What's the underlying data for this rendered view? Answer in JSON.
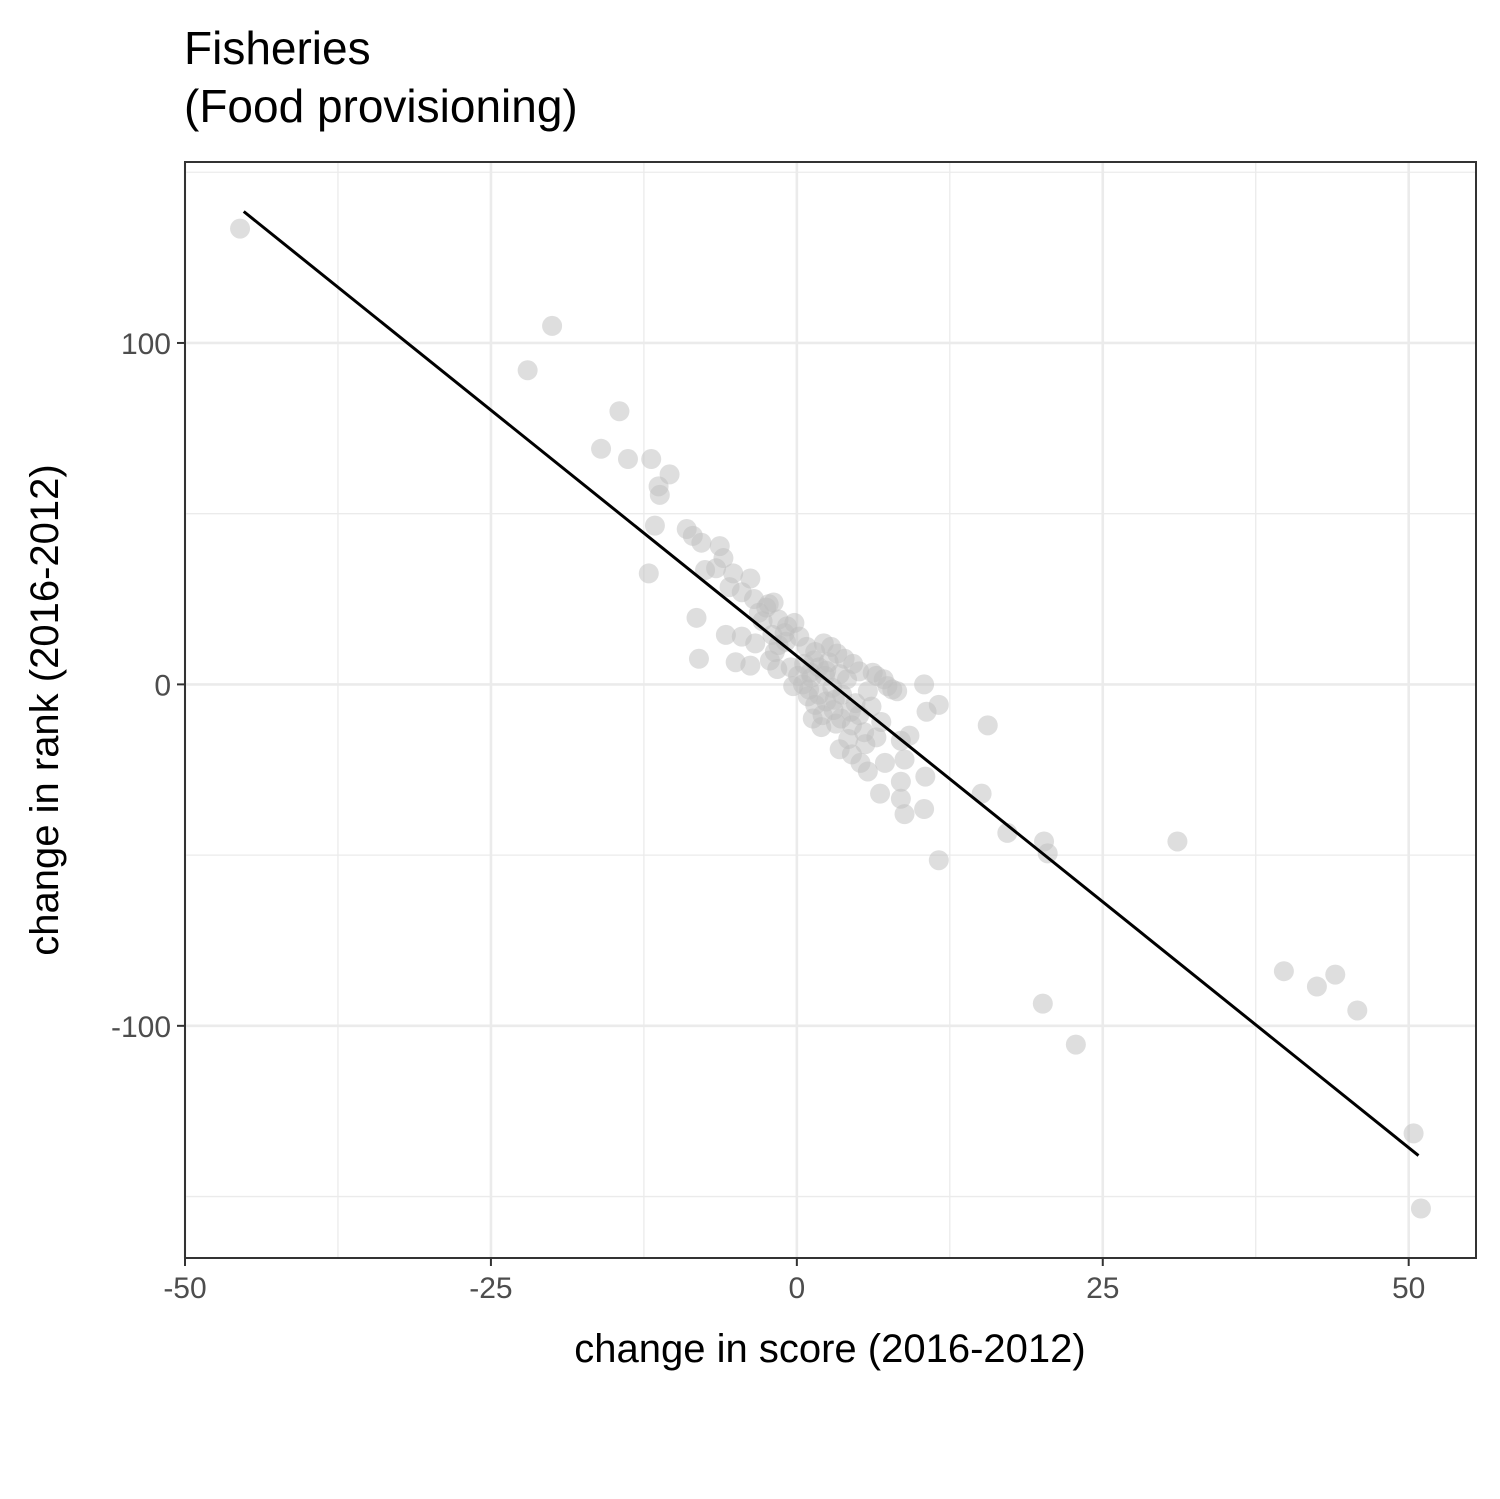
{
  "chart_data": {
    "type": "scatter",
    "title_lines": [
      "Fisheries",
      "(Food provisioning)"
    ],
    "xlabel": "change in score (2016-2012)",
    "ylabel": "change in rank (2016-2012)",
    "xlim": [
      -50,
      55.5
    ],
    "ylim": [
      -168,
      153
    ],
    "x_ticks": [
      {
        "value": -50,
        "label": "-50"
      },
      {
        "value": -25,
        "label": "-25"
      },
      {
        "value": 0,
        "label": "0"
      },
      {
        "value": 25,
        "label": "25"
      },
      {
        "value": 50,
        "label": "50"
      }
    ],
    "y_ticks": [
      {
        "value": -100,
        "label": "-100"
      },
      {
        "value": 0,
        "label": "0"
      },
      {
        "value": 100,
        "label": "100"
      }
    ],
    "x_minor_breaks": [
      -37.5,
      -12.5,
      12.5,
      37.5
    ],
    "y_minor_breaks": [
      -150,
      -50,
      50,
      150
    ],
    "grid": true,
    "point_color": "#bebebe",
    "point_opacity": 0.5,
    "line_color": "#000000",
    "trend_line": [
      [
        -45.2,
        138.5
      ],
      [
        50.8,
        -138
      ]
    ],
    "points": [
      [
        -45.5,
        133.5
      ],
      [
        -22,
        92
      ],
      [
        -20,
        105
      ],
      [
        -14.5,
        80
      ],
      [
        -16,
        69
      ],
      [
        -13.8,
        66
      ],
      [
        -11.9,
        66
      ],
      [
        -11.3,
        58
      ],
      [
        -11.2,
        55.5
      ],
      [
        -10.4,
        61.5
      ],
      [
        -11.6,
        46.5
      ],
      [
        -12.1,
        32.5
      ],
      [
        -9,
        45.5
      ],
      [
        -8.5,
        43.5
      ],
      [
        -7.8,
        41.5
      ],
      [
        -6.3,
        40.5
      ],
      [
        -6,
        37
      ],
      [
        -6.6,
        34
      ],
      [
        -7.5,
        33.5
      ],
      [
        -5.2,
        32.5
      ],
      [
        -3.8,
        31
      ],
      [
        -5.5,
        28.5
      ],
      [
        -4.5,
        27
      ],
      [
        -3.5,
        25
      ],
      [
        -2.5,
        22.5
      ],
      [
        -2.3,
        23.5
      ],
      [
        -1.9,
        24
      ],
      [
        -3.1,
        21
      ],
      [
        -2.8,
        18.5
      ],
      [
        -1.5,
        19
      ],
      [
        -0.8,
        17
      ],
      [
        -0.2,
        18
      ],
      [
        -8.2,
        19.5
      ],
      [
        -1,
        15
      ],
      [
        0.2,
        14
      ],
      [
        -2,
        14.5
      ],
      [
        -4.5,
        14
      ],
      [
        -3.4,
        12
      ],
      [
        -5.8,
        14.5
      ],
      [
        -1.5,
        11.5
      ],
      [
        -8,
        7.5
      ],
      [
        -5,
        6.5
      ],
      [
        -3.8,
        5.5
      ],
      [
        -2.2,
        7
      ],
      [
        -1.6,
        4.5
      ],
      [
        0.8,
        11
      ],
      [
        1.5,
        9.5
      ],
      [
        2.2,
        12
      ],
      [
        2.8,
        11
      ],
      [
        3.3,
        9
      ],
      [
        3.9,
        7.5
      ],
      [
        4.6,
        6
      ],
      [
        5.1,
        3.8
      ],
      [
        6.2,
        3.4
      ],
      [
        6.5,
        2.5
      ],
      [
        7.1,
        1.5
      ],
      [
        7.4,
        -0.5
      ],
      [
        7.8,
        -1.5
      ],
      [
        8.2,
        -2
      ],
      [
        2.4,
        4
      ],
      [
        1.2,
        2
      ],
      [
        0.5,
        0
      ],
      [
        1,
        -1.5
      ],
      [
        1.8,
        -3
      ],
      [
        2.4,
        -5
      ],
      [
        3,
        -7.5
      ],
      [
        3.6,
        -10
      ],
      [
        4.5,
        -12
      ],
      [
        5.5,
        -14
      ],
      [
        4.2,
        -16
      ],
      [
        3.5,
        -19
      ],
      [
        4.5,
        -20.5
      ],
      [
        5.2,
        -23
      ],
      [
        5.8,
        -25.5
      ],
      [
        6.5,
        -15.5
      ],
      [
        7.2,
        -23
      ],
      [
        6.8,
        -32
      ],
      [
        8.5,
        -16.5
      ],
      [
        8.8,
        -22
      ],
      [
        9.2,
        -15
      ],
      [
        8.5,
        -28.5
      ],
      [
        8.5,
        -33.5
      ],
      [
        8.8,
        -38
      ],
      [
        10.4,
        -36.5
      ],
      [
        10.5,
        -27
      ],
      [
        10.4,
        0
      ],
      [
        10.6,
        -8
      ],
      [
        11.6,
        -6
      ],
      [
        11.6,
        -51.5
      ],
      [
        15.1,
        -32
      ],
      [
        15.6,
        -12
      ],
      [
        17.2,
        -43.5
      ],
      [
        20.2,
        -46
      ],
      [
        20.5,
        -49.5
      ],
      [
        31.1,
        -46
      ],
      [
        20.1,
        -93.5
      ],
      [
        22.8,
        -105.5
      ],
      [
        39.8,
        -84
      ],
      [
        42.5,
        -88.5
      ],
      [
        44,
        -85
      ],
      [
        45.8,
        -95.5
      ],
      [
        50.4,
        -131.5
      ],
      [
        51,
        -153.5
      ],
      [
        1.8,
        5
      ],
      [
        2.3,
        2.5
      ],
      [
        3.5,
        3
      ],
      [
        0.6,
        6
      ],
      [
        1.4,
        7
      ],
      [
        4.1,
        1.5
      ],
      [
        2.9,
        -1
      ],
      [
        3.7,
        -3
      ],
      [
        4.8,
        -5.5
      ],
      [
        1.5,
        -6
      ],
      [
        2.1,
        -9
      ],
      [
        3.2,
        -11.5
      ],
      [
        5.1,
        -9
      ],
      [
        6.1,
        -6.5
      ],
      [
        5.8,
        -2
      ],
      [
        -0.5,
        5
      ],
      [
        0.1,
        2.5
      ],
      [
        -0.3,
        -0.5
      ],
      [
        0.9,
        -3.5
      ],
      [
        4.4,
        -8
      ],
      [
        5.6,
        -17.5
      ],
      [
        6.9,
        -11
      ],
      [
        1.1,
        3.5
      ],
      [
        2.6,
        6.5
      ],
      [
        3.1,
        -4.5
      ],
      [
        2,
        -12.5
      ],
      [
        1.3,
        -10
      ],
      [
        -1.8,
        9.5
      ],
      [
        -0.9,
        12.5
      ]
    ]
  }
}
